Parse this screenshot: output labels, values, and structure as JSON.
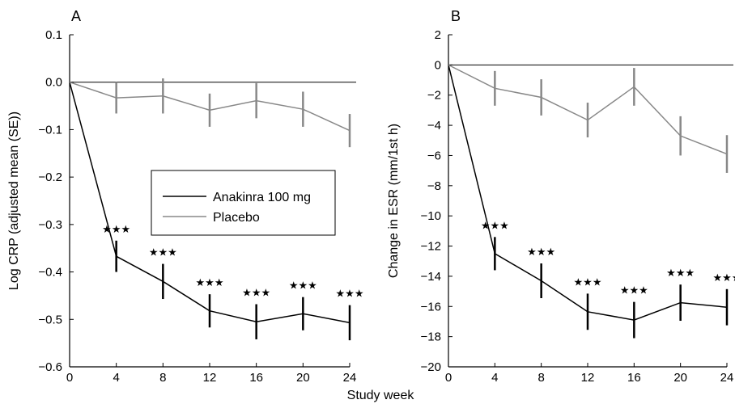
{
  "xlabel": "Study week",
  "legend": {
    "entries": [
      "Anakinra 100 mg",
      "Placebo"
    ],
    "colors": [
      "#000000",
      "#888888"
    ],
    "placement": "center (panel A)"
  },
  "significance_marker": "★★★",
  "chart_data": [
    {
      "type": "line",
      "panel": "A",
      "ylabel": "Log CRP (adjusted mean (SE))",
      "xlabel": "Study week",
      "xlim": [
        0,
        24
      ],
      "ylim": [
        -0.6,
        0.1
      ],
      "x_ticks": [
        "0",
        "4",
        "8",
        "12",
        "16",
        "20",
        "24"
      ],
      "y_ticks": [
        "0.1",
        "0.0",
        "−0.1",
        "−0.2",
        "−0.3",
        "−0.4",
        "−0.5",
        "−0.6"
      ],
      "y_tick_values": [
        0.1,
        0.0,
        -0.1,
        -0.2,
        -0.3,
        -0.4,
        -0.5,
        -0.6
      ],
      "reference_line_y": 0,
      "series": [
        {
          "name": "Anakinra 100 mg",
          "color": "#000000",
          "x": [
            0,
            4,
            8,
            12,
            16,
            20,
            24
          ],
          "y": [
            0,
            -0.367,
            -0.42,
            -0.482,
            -0.505,
            -0.488,
            -0.507
          ],
          "se": [
            0,
            0.033,
            0.037,
            0.035,
            0.037,
            0.035,
            0.037
          ],
          "significance": [
            false,
            true,
            true,
            true,
            true,
            true,
            true
          ]
        },
        {
          "name": "Placebo",
          "color": "#888888",
          "x": [
            0,
            4,
            8,
            12,
            16,
            20,
            24
          ],
          "y": [
            0,
            -0.033,
            -0.029,
            -0.059,
            -0.039,
            -0.057,
            -0.102
          ],
          "se": [
            0,
            0.033,
            0.037,
            0.035,
            0.037,
            0.037,
            0.035
          ],
          "significance": [
            false,
            false,
            false,
            false,
            false,
            false,
            false
          ]
        }
      ]
    },
    {
      "type": "line",
      "panel": "B",
      "ylabel": "Change in ESR (mm/1st h)",
      "xlabel": "Study week",
      "xlim": [
        0,
        24
      ],
      "ylim": [
        -20,
        2
      ],
      "x_ticks": [
        "0",
        "4",
        "8",
        "12",
        "16",
        "20",
        "24"
      ],
      "y_ticks": [
        "2",
        "0",
        "−2",
        "−4",
        "−6",
        "−8",
        "−10",
        "−12",
        "−14",
        "−16",
        "−18",
        "−20"
      ],
      "y_tick_values": [
        2,
        0,
        -2,
        -4,
        -6,
        -8,
        -10,
        -12,
        -14,
        -16,
        -18,
        -20
      ],
      "reference_line_y": 0,
      "series": [
        {
          "name": "Anakinra 100 mg",
          "color": "#000000",
          "x": [
            0,
            4,
            8,
            12,
            16,
            20,
            24
          ],
          "y": [
            0,
            -12.5,
            -14.3,
            -16.35,
            -16.9,
            -15.75,
            -16.05
          ],
          "se": [
            0,
            1.1,
            1.15,
            1.2,
            1.2,
            1.2,
            1.2
          ],
          "significance": [
            false,
            true,
            true,
            true,
            true,
            true,
            true
          ]
        },
        {
          "name": "Placebo",
          "color": "#888888",
          "x": [
            0,
            4,
            8,
            12,
            16,
            20,
            24
          ],
          "y": [
            0,
            -1.55,
            -2.15,
            -3.65,
            -1.45,
            -4.7,
            -5.9
          ],
          "se": [
            0,
            1.15,
            1.2,
            1.15,
            1.25,
            1.3,
            1.25
          ],
          "significance": [
            false,
            false,
            false,
            false,
            false,
            false,
            false
          ]
        }
      ]
    }
  ]
}
